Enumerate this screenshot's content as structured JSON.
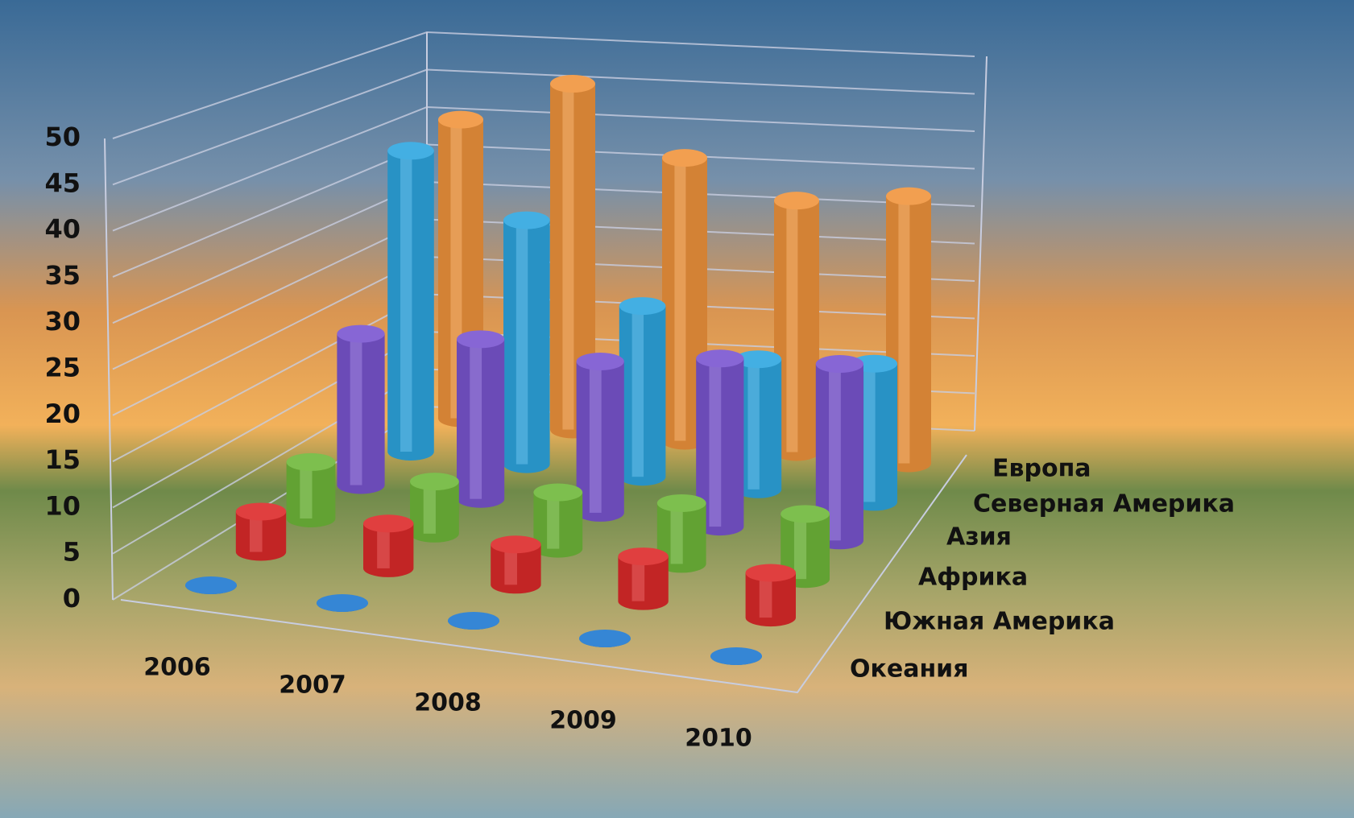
{
  "chart_data": {
    "type": "bar3d",
    "categories": [
      "2006",
      "2007",
      "2008",
      "2009",
      "2010"
    ],
    "series": [
      {
        "name": "Европа",
        "color": "#f0943c",
        "values": [
          38,
          44,
          36,
          32,
          34
        ]
      },
      {
        "name": "Северная Америка",
        "color": "#2ea6e0",
        "values": [
          37,
          30,
          21,
          16,
          17
        ]
      },
      {
        "name": "Азия",
        "color": "#7a55d0",
        "values": [
          18,
          19,
          18,
          20,
          21
        ]
      },
      {
        "name": "Африка",
        "color": "#6fb83a",
        "values": [
          6.5,
          6,
          6.5,
          7,
          7.5
        ]
      },
      {
        "name": "Южная Америка",
        "color": "#dc2a2a",
        "values": [
          4.5,
          5,
          4.5,
          5,
          5
        ]
      },
      {
        "name": "Океания",
        "color": "#1f78d0",
        "values": [
          0,
          0,
          0,
          0,
          0
        ]
      }
    ],
    "ylim": [
      0,
      50
    ],
    "yticks": [
      0,
      5,
      10,
      15,
      20,
      25,
      30,
      35,
      40,
      45,
      50
    ],
    "grid": true
  }
}
